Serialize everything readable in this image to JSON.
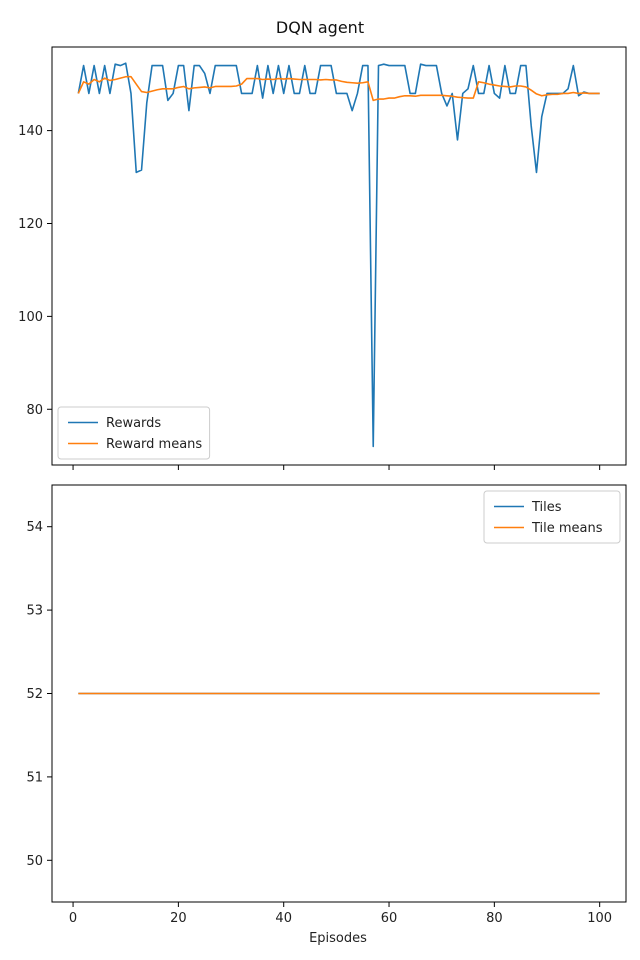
{
  "figure": {
    "title": "DQN agent",
    "xlabel": "Episodes"
  },
  "chart_data": [
    {
      "type": "line",
      "x_range": [
        1,
        100
      ],
      "xlim": [
        -4,
        105
      ],
      "ylim": [
        68,
        158
      ],
      "x_ticks": [
        0,
        20,
        40,
        60,
        80,
        100
      ],
      "x_tick_labels_shown": false,
      "y_ticks": [
        80,
        100,
        120,
        140
      ],
      "legend_position": "lower-left",
      "series": [
        {
          "name": "Rewards",
          "color": "#1f77b4",
          "values": [
            148,
            154,
            148,
            154,
            148,
            154,
            148,
            154.3,
            154,
            154.5,
            148,
            131,
            131.5,
            146,
            154,
            154,
            154,
            146.5,
            148,
            154,
            154,
            144.3,
            154,
            154,
            152.3,
            148,
            154,
            154,
            154,
            154,
            154,
            148,
            148,
            148,
            154,
            147,
            154,
            148,
            154,
            148,
            154,
            148,
            148,
            154,
            148,
            148,
            154,
            154,
            154,
            148,
            148,
            148,
            144.3,
            148,
            154,
            154,
            72,
            154,
            154.3,
            154,
            154,
            154,
            154,
            148,
            148,
            154.3,
            154,
            154,
            154,
            148,
            145.3,
            148,
            138,
            148,
            149,
            154,
            148,
            148,
            154,
            148,
            147,
            154,
            148,
            148,
            154,
            154,
            141,
            131,
            143,
            148,
            148,
            148,
            148,
            149,
            154,
            147.5,
            148.3,
            148,
            148,
            148
          ]
        },
        {
          "name": "Reward means",
          "color": "#ff7f0e",
          "values": [
            148,
            150.5,
            150,
            151,
            150.5,
            151.3,
            150.8,
            151,
            151.3,
            151.6,
            151.6,
            150,
            148.4,
            148.2,
            148.5,
            148.8,
            149,
            149,
            149,
            149.3,
            149.5,
            149,
            149.2,
            149.3,
            149.4,
            149.2,
            149.5,
            149.5,
            149.5,
            149.5,
            149.6,
            150,
            151.2,
            151.2,
            151.2,
            151,
            151.1,
            151,
            151.2,
            151.1,
            151.2,
            151.1,
            151,
            151,
            151,
            151,
            150.9,
            151,
            150.9,
            150.9,
            150.6,
            150.4,
            150.3,
            150.2,
            150.3,
            150.5,
            146.5,
            146.8,
            146.8,
            147,
            147,
            147.3,
            147.5,
            147.5,
            147.4,
            147.6,
            147.6,
            147.6,
            147.6,
            147.6,
            147.5,
            147.4,
            147.2,
            147.1,
            147,
            147,
            150.5,
            150.3,
            150,
            149.8,
            149.6,
            149.5,
            149.4,
            149.6,
            149.6,
            149.4,
            148.7,
            147.9,
            147.5,
            147.7,
            147.8,
            147.8,
            148,
            148,
            148.2,
            148,
            148.1,
            148,
            148,
            148
          ]
        }
      ]
    },
    {
      "type": "line",
      "x_range": [
        1,
        100
      ],
      "xlim": [
        -4,
        105
      ],
      "ylim": [
        49.5,
        54.5
      ],
      "x_ticks": [
        0,
        20,
        40,
        60,
        80,
        100
      ],
      "y_ticks": [
        50,
        51,
        52,
        53,
        54
      ],
      "legend_position": "top-right",
      "series": [
        {
          "name": "Tiles",
          "color": "#1f77b4",
          "constant": 52
        },
        {
          "name": "Tile means",
          "color": "#ff7f0e",
          "constant": 52
        }
      ]
    }
  ]
}
